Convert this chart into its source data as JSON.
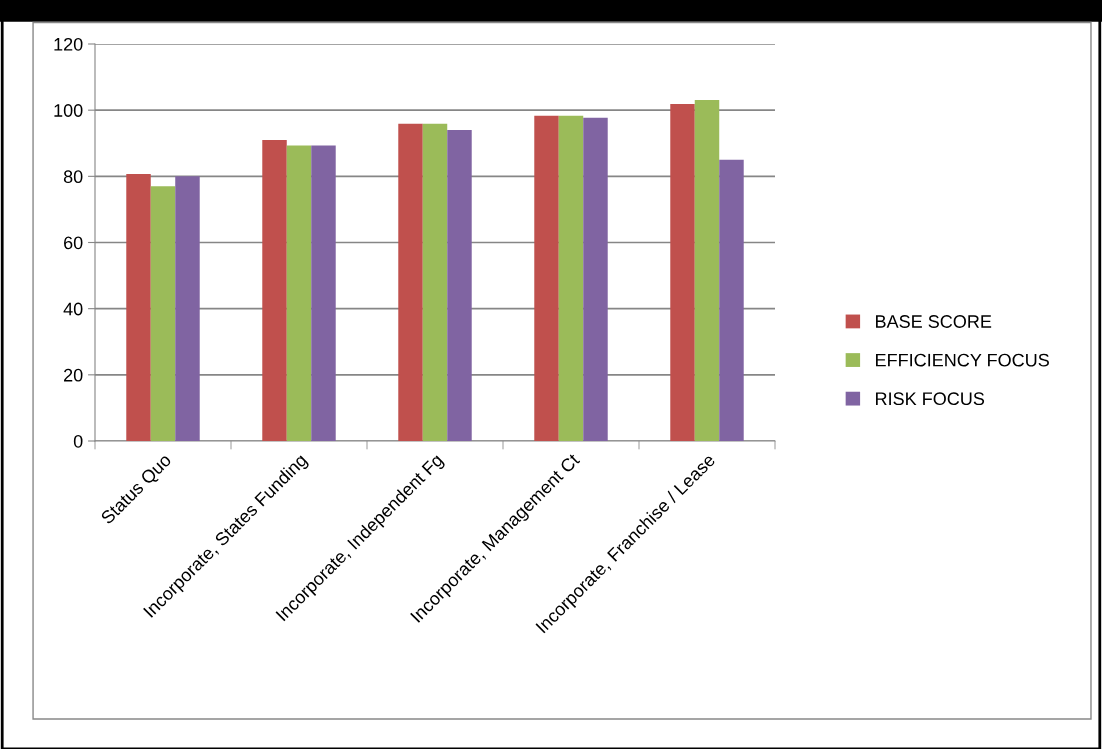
{
  "chart_data": {
    "type": "bar",
    "categories": [
      "Status Quo",
      "Incorporate, States Funding",
      "Incorporate, Independent Fg",
      "Incorporate, Management Ct",
      "Incorporate, Franchise / Lease"
    ],
    "series": [
      {
        "name": "BASE SCORE",
        "color": "#c0504d",
        "values": [
          80.7,
          91,
          95.9,
          98.3,
          101.9
        ]
      },
      {
        "name": "EFFICIENCY FOCUS",
        "color": "#9bbb59",
        "values": [
          77,
          89.3,
          95.9,
          98.3,
          103.1
        ]
      },
      {
        "name": "RISK FOCUS",
        "color": "#8064a2",
        "values": [
          80,
          89.3,
          94,
          97.7,
          85
        ]
      }
    ],
    "ylim": [
      0,
      120
    ],
    "yticks": [
      0,
      20,
      40,
      60,
      80,
      100,
      120
    ],
    "grid": "y",
    "legend": "right"
  }
}
